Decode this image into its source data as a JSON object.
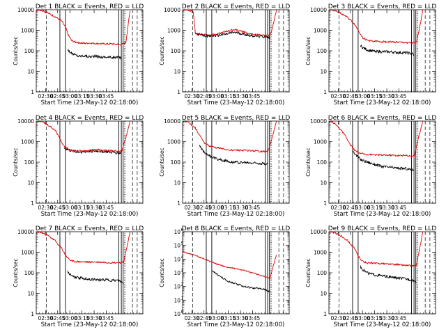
{
  "chart_data": [
    {
      "type": "line",
      "title": "Det 1 BLACK = Events, RED = LLD",
      "xlabel": "Start Time (23-May-12 02:18:00)",
      "ylabel": "Counts/sec",
      "x_ticks": [
        "02:30",
        "02:45",
        "03:00",
        "03:15",
        "03:30",
        "03:45"
      ],
      "y_ticks": [
        "1",
        "10",
        "100",
        "1000",
        "10000"
      ],
      "ylim": [
        1,
        10000
      ],
      "yscale": "log",
      "colors": {
        "events": "#000000",
        "lld": "#dd0000"
      },
      "series": [
        {
          "name": "BLACK = Events",
          "x": [
            0.295,
            0.31,
            0.33,
            0.36,
            0.4,
            0.45,
            0.5,
            0.55,
            0.6,
            0.65,
            0.7,
            0.75,
            0.78,
            0.8
          ],
          "y": [
            120,
            95,
            75,
            65,
            55,
            58,
            52,
            55,
            50,
            50,
            48,
            47,
            50,
            42
          ]
        },
        {
          "name": "RED = LLD",
          "x": [
            0.0,
            0.06,
            0.12,
            0.18,
            0.24,
            0.28,
            0.3,
            0.33,
            0.36,
            0.4,
            0.45,
            0.5,
            0.55,
            0.6,
            0.65,
            0.7,
            0.75,
            0.78,
            0.81,
            0.84,
            0.86,
            0.88
          ],
          "y": [
            11000,
            9000,
            6500,
            4500,
            2800,
            1200,
            600,
            320,
            270,
            250,
            230,
            240,
            230,
            225,
            215,
            220,
            210,
            205,
            210,
            250,
            1500,
            9000
          ]
        }
      ]
    },
    {
      "type": "line",
      "title": "Det 2 BLACK = Events, RED = LLD",
      "xlabel": "Start Time (23-May-12 02:18:00)",
      "ylabel": "Counts/sec",
      "x_ticks": [
        "02:30",
        "02:45",
        "03:00",
        "03:15",
        "03:30",
        "03:45"
      ],
      "y_ticks": [
        "1",
        "10",
        "100",
        "1000",
        "10000"
      ],
      "ylim": [
        1,
        10000
      ],
      "yscale": "log",
      "colors": {
        "events": "#000000",
        "lld": "#dd0000"
      },
      "series": [
        {
          "name": "BLACK = Events",
          "x": [
            0.12,
            0.18,
            0.25,
            0.32,
            0.4,
            0.48,
            0.55,
            0.62,
            0.7,
            0.78,
            0.82
          ],
          "y": [
            700,
            580,
            520,
            560,
            640,
            800,
            700,
            580,
            520,
            480,
            420
          ]
        },
        {
          "name": "RED = LLD",
          "x": [
            0.0,
            0.05,
            0.1,
            0.12,
            0.18,
            0.25,
            0.32,
            0.4,
            0.48,
            0.55,
            0.62,
            0.7,
            0.78,
            0.82,
            0.86,
            0.88
          ],
          "y": [
            11000,
            10000,
            8000,
            700,
            620,
            600,
            650,
            850,
            1100,
            900,
            700,
            600,
            550,
            560,
            3000,
            10000
          ]
        }
      ]
    },
    {
      "type": "line",
      "title": "Det 3 BLACK = Events, RED = LLD",
      "xlabel": "Start Time (23-May-12 02:18:00)",
      "ylabel": "Counts/sec",
      "x_ticks": [
        "02:30",
        "02:45",
        "03:00",
        "03:15",
        "03:30",
        "03:45"
      ],
      "y_ticks": [
        "1",
        "10",
        "100",
        "1000",
        "10000"
      ],
      "ylim": [
        1,
        10000
      ],
      "yscale": "log",
      "colors": {
        "events": "#000000",
        "lld": "#dd0000"
      },
      "series": [
        {
          "name": "BLACK = Events",
          "x": [
            0.295,
            0.32,
            0.36,
            0.42,
            0.5,
            0.58,
            0.65,
            0.72,
            0.78,
            0.8
          ],
          "y": [
            180,
            140,
            110,
            95,
            90,
            88,
            82,
            80,
            72,
            60
          ]
        },
        {
          "name": "RED = LLD",
          "x": [
            0.0,
            0.06,
            0.12,
            0.18,
            0.24,
            0.28,
            0.32,
            0.36,
            0.42,
            0.5,
            0.58,
            0.65,
            0.72,
            0.78,
            0.82,
            0.86,
            0.88
          ],
          "y": [
            11000,
            9000,
            6500,
            4000,
            2000,
            900,
            420,
            320,
            290,
            280,
            270,
            260,
            250,
            240,
            250,
            2500,
            10000
          ]
        }
      ]
    },
    {
      "type": "line",
      "title": "Det 4 BLACK = Events, RED = LLD",
      "xlabel": "Start Time (23-May-12 02:18:00)",
      "ylabel": "Counts/sec",
      "x_ticks": [
        "02:30",
        "02:45",
        "03:00",
        "03:15",
        "03:30",
        "03:45"
      ],
      "y_ticks": [
        "1",
        "10",
        "100",
        "1000",
        "10000"
      ],
      "ylim": [
        1,
        10000
      ],
      "yscale": "log",
      "colors": {
        "events": "#000000",
        "lld": "#dd0000"
      },
      "series": [
        {
          "name": "BLACK = Events",
          "x": [
            0.26,
            0.3,
            0.35,
            0.42,
            0.5,
            0.58,
            0.65,
            0.72,
            0.8
          ],
          "y": [
            500,
            400,
            330,
            310,
            340,
            350,
            330,
            300,
            280
          ]
        },
        {
          "name": "RED = LLD",
          "x": [
            0.0,
            0.06,
            0.12,
            0.18,
            0.22,
            0.26,
            0.3,
            0.35,
            0.42,
            0.5,
            0.58,
            0.65,
            0.72,
            0.8,
            0.84,
            0.88
          ],
          "y": [
            11000,
            9000,
            6000,
            3500,
            1500,
            600,
            440,
            370,
            350,
            380,
            400,
            380,
            350,
            330,
            1500,
            10000
          ]
        }
      ]
    },
    {
      "type": "line",
      "title": "Det 5 BLACK = Events, RED = LLD",
      "xlabel": "Start Time (23-May-12 02:18:00)",
      "ylabel": "Counts/sec",
      "x_ticks": [
        "02:30",
        "02:45",
        "03:00",
        "03:15",
        "03:30",
        "03:45"
      ],
      "y_ticks": [
        "1",
        "10",
        "100",
        "1000",
        "10000"
      ],
      "ylim": [
        1,
        10000
      ],
      "yscale": "log",
      "colors": {
        "events": "#000000",
        "lld": "#dd0000"
      },
      "series": [
        {
          "name": "BLACK = Events",
          "x": [
            0.16,
            0.2,
            0.25,
            0.3,
            0.36,
            0.42,
            0.5,
            0.58,
            0.65,
            0.72,
            0.8
          ],
          "y": [
            600,
            320,
            200,
            160,
            130,
            110,
            100,
            95,
            92,
            90,
            82
          ]
        },
        {
          "name": "RED = LLD",
          "x": [
            0.0,
            0.06,
            0.12,
            0.16,
            0.2,
            0.25,
            0.3,
            0.36,
            0.42,
            0.5,
            0.58,
            0.65,
            0.72,
            0.8,
            0.84,
            0.88
          ],
          "y": [
            11000,
            8500,
            4500,
            2000,
            900,
            620,
            520,
            460,
            400,
            380,
            370,
            360,
            340,
            320,
            1500,
            10000
          ]
        }
      ]
    },
    {
      "type": "line",
      "title": "Det 6 BLACK = Events, RED = LLD",
      "xlabel": "Start Time (23-May-12 02:18:00)",
      "ylabel": "Counts/sec",
      "x_ticks": [
        "02:30",
        "02:45",
        "03:00",
        "03:15",
        "03:30",
        "03:45"
      ],
      "y_ticks": [
        "1",
        "10",
        "100",
        "1000",
        "10000"
      ],
      "ylim": [
        1,
        10000
      ],
      "yscale": "log",
      "colors": {
        "events": "#000000",
        "lld": "#dd0000"
      },
      "series": [
        {
          "name": "BLACK = Events",
          "x": [
            0.22,
            0.26,
            0.3,
            0.36,
            0.42,
            0.5,
            0.58,
            0.65,
            0.72,
            0.8
          ],
          "y": [
            400,
            200,
            130,
            100,
            80,
            60,
            55,
            50,
            48,
            40
          ]
        },
        {
          "name": "RED = LLD",
          "x": [
            0.0,
            0.05,
            0.1,
            0.15,
            0.2,
            0.24,
            0.3,
            0.36,
            0.42,
            0.5,
            0.58,
            0.65,
            0.72,
            0.8,
            0.84,
            0.88
          ],
          "y": [
            11000,
            8000,
            4500,
            2000,
            700,
            380,
            260,
            240,
            230,
            220,
            220,
            210,
            210,
            200,
            1500,
            10000
          ]
        }
      ]
    },
    {
      "type": "line",
      "title": "Det 7 BLACK = Events, RED = LLD",
      "xlabel": "Start Time (23-May-12 02:18:00)",
      "ylabel": "Counts/sec",
      "x_ticks": [
        "02:30",
        "02:45",
        "03:00",
        "03:15",
        "03:30",
        "03:45"
      ],
      "y_ticks": [
        "1",
        "10",
        "100",
        "1000",
        "10000"
      ],
      "ylim": [
        1,
        10000
      ],
      "yscale": "log",
      "colors": {
        "events": "#000000",
        "lld": "#dd0000"
      },
      "series": [
        {
          "name": "BLACK = Events",
          "x": [
            0.295,
            0.32,
            0.36,
            0.42,
            0.5,
            0.58,
            0.65,
            0.72,
            0.78,
            0.82
          ],
          "y": [
            110,
            80,
            60,
            55,
            48,
            45,
            45,
            42,
            40,
            30
          ]
        },
        {
          "name": "RED = LLD",
          "x": [
            0.0,
            0.06,
            0.12,
            0.18,
            0.24,
            0.28,
            0.32,
            0.36,
            0.42,
            0.5,
            0.58,
            0.65,
            0.72,
            0.78,
            0.82,
            0.86,
            0.88
          ],
          "y": [
            11000,
            8500,
            6000,
            3500,
            1500,
            650,
            400,
            350,
            340,
            330,
            330,
            320,
            310,
            310,
            320,
            3000,
            10000
          ]
        }
      ]
    },
    {
      "type": "line",
      "title": "Det 8 BLACK = Events, RED = LLD",
      "xlabel": "Start Time (23-May-12 02:18:00)",
      "ylabel": "Counts/sec",
      "x_ticks": [
        "02:30",
        "02:45",
        "03:00",
        "03:15",
        "03:30",
        "03:45"
      ],
      "y_ticks": [
        "10",
        "10",
        "10",
        "10",
        "10",
        "10",
        "10"
      ],
      "y_exponents": [
        "0",
        "1",
        "2",
        "3",
        "4",
        "5",
        "6"
      ],
      "ylim": [
        1,
        1000000
      ],
      "yscale": "log",
      "colors": {
        "events": "#000000",
        "lld": "#dd0000"
      },
      "series": [
        {
          "name": "BLACK = Events",
          "x": [
            0.28,
            0.32,
            0.36,
            0.42,
            0.5,
            0.58,
            0.65,
            0.72,
            0.78,
            0.82
          ],
          "y": [
            1500,
            800,
            500,
            250,
            150,
            100,
            80,
            70,
            60,
            40
          ]
        },
        {
          "name": "RED = LLD",
          "x": [
            0.0,
            0.06,
            0.12,
            0.18,
            0.24,
            0.3,
            0.36,
            0.42,
            0.5,
            0.58,
            0.65,
            0.72,
            0.78,
            0.82,
            0.85,
            0.88
          ],
          "y": [
            35000,
            25000,
            18000,
            12000,
            8000,
            5000,
            3500,
            2500,
            2000,
            1500,
            1000,
            700,
            500,
            400,
            3000,
            20000
          ]
        }
      ]
    },
    {
      "type": "line",
      "title": "Det 9 BLACK = Events, RED = LLD",
      "xlabel": "Start Time (23-May-12 02:18:00)",
      "ylabel": "Counts/sec",
      "x_ticks": [
        "02:30",
        "02:45",
        "03:00",
        "03:15",
        "03:30",
        "03:45"
      ],
      "y_ticks": [
        "1",
        "10",
        "100",
        "1000",
        "10000"
      ],
      "ylim": [
        1,
        10000
      ],
      "yscale": "log",
      "colors": {
        "events": "#000000",
        "lld": "#dd0000"
      },
      "series": [
        {
          "name": "BLACK = Events",
          "x": [
            0.295,
            0.32,
            0.36,
            0.42,
            0.5,
            0.58,
            0.65,
            0.72,
            0.78,
            0.82
          ],
          "y": [
            200,
            140,
            100,
            80,
            70,
            60,
            55,
            50,
            45,
            35
          ]
        },
        {
          "name": "RED = LLD",
          "x": [
            0.0,
            0.06,
            0.12,
            0.18,
            0.24,
            0.28,
            0.32,
            0.36,
            0.42,
            0.5,
            0.58,
            0.65,
            0.72,
            0.78,
            0.82,
            0.86,
            0.88
          ],
          "y": [
            11000,
            8500,
            6000,
            3500,
            1500,
            600,
            350,
            300,
            290,
            280,
            260,
            250,
            230,
            220,
            230,
            2500,
            10000
          ]
        }
      ]
    }
  ]
}
